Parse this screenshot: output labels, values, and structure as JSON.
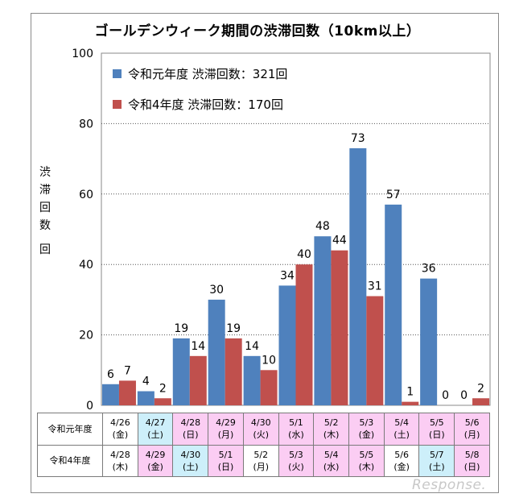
{
  "chart_data": {
    "type": "bar",
    "title": "ゴールデンウィーク期間の渋滞回数（10km以上）",
    "ylabel_chars": [
      "渋",
      "滞",
      "回",
      "数",
      "回"
    ],
    "ylim": [
      0,
      100
    ],
    "yticks": [
      0,
      20,
      40,
      60,
      80,
      100
    ],
    "grid": true,
    "legend_position": "top-left",
    "categories": [
      "4/26",
      "4/27",
      "4/28",
      "4/29",
      "4/30",
      "5/1",
      "5/2",
      "5/3",
      "5/4",
      "5/5",
      "5/6"
    ],
    "series": [
      {
        "name": "令和元年度 渋滞回数：321回",
        "color": "#4f81bd",
        "values": [
          6,
          4,
          19,
          30,
          14,
          34,
          48,
          73,
          57,
          36,
          0
        ]
      },
      {
        "name": "令和4年度 渋滞回数：170回",
        "color": "#c0504d",
        "values": [
          7,
          2,
          14,
          19,
          10,
          40,
          44,
          31,
          1,
          0,
          2
        ]
      }
    ]
  },
  "date_table": {
    "rows": [
      {
        "label": "令和元年度",
        "cells": [
          {
            "date": "4/26",
            "day": "(金)",
            "bg": "#ffffff"
          },
          {
            "date": "4/27",
            "day": "(土)",
            "bg": "#cdeffa"
          },
          {
            "date": "4/28",
            "day": "(日)",
            "bg": "#fbcdf3"
          },
          {
            "date": "4/29",
            "day": "(月)",
            "bg": "#fbcdf3"
          },
          {
            "date": "4/30",
            "day": "(火)",
            "bg": "#fbcdf3"
          },
          {
            "date": "5/1",
            "day": "(水)",
            "bg": "#fbcdf3"
          },
          {
            "date": "5/2",
            "day": "(木)",
            "bg": "#fbcdf3"
          },
          {
            "date": "5/3",
            "day": "(金)",
            "bg": "#fbcdf3"
          },
          {
            "date": "5/4",
            "day": "(土)",
            "bg": "#fbcdf3"
          },
          {
            "date": "5/5",
            "day": "(日)",
            "bg": "#fbcdf3"
          },
          {
            "date": "5/6",
            "day": "(月)",
            "bg": "#fbcdf3"
          }
        ]
      },
      {
        "label": "令和4年度",
        "cells": [
          {
            "date": "4/28",
            "day": "(木)",
            "bg": "#ffffff"
          },
          {
            "date": "4/29",
            "day": "(金)",
            "bg": "#fbcdf3"
          },
          {
            "date": "4/30",
            "day": "(土)",
            "bg": "#cdeffa"
          },
          {
            "date": "5/1",
            "day": "(日)",
            "bg": "#fbcdf3"
          },
          {
            "date": "5/2",
            "day": "(月)",
            "bg": "#ffffff"
          },
          {
            "date": "5/3",
            "day": "(火)",
            "bg": "#fbcdf3"
          },
          {
            "date": "5/4",
            "day": "(水)",
            "bg": "#fbcdf3"
          },
          {
            "date": "5/5",
            "day": "(木)",
            "bg": "#fbcdf3"
          },
          {
            "date": "5/6",
            "day": "(金)",
            "bg": "#ffffff"
          },
          {
            "date": "5/7",
            "day": "(土)",
            "bg": "#cdeffa"
          },
          {
            "date": "5/8",
            "day": "(日)",
            "bg": "#fbcdf3"
          }
        ]
      }
    ]
  },
  "watermark": "Response."
}
